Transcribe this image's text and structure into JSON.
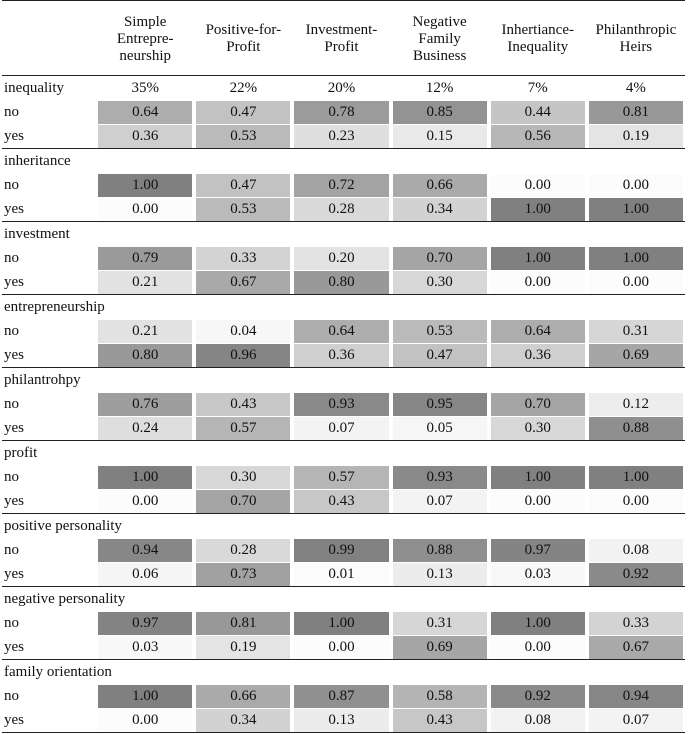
{
  "columns": [
    "Simple Entrepre-neurship",
    "Positive-for-Profit",
    "Investment-Profit",
    "Negative Family Business",
    "Inhertiance-Inequality",
    "Philanthropic Heirs"
  ],
  "column_lines": [
    [
      "Simple",
      "Entrepre-",
      "neurship"
    ],
    [
      "Positive-for-",
      "Profit"
    ],
    [
      "Investment-",
      "Profit"
    ],
    [
      "Negative",
      "Family",
      "Business"
    ],
    [
      "Inhertiance-",
      "Inequality"
    ],
    [
      "Philanthropic",
      "Heirs"
    ]
  ],
  "groups": [
    {
      "name": "inequality",
      "shares": [
        "35%",
        "22%",
        "20%",
        "12%",
        "7%",
        "4%"
      ],
      "rows": [
        {
          "label": "no",
          "values": [
            "0.64",
            "0.47",
            "0.78",
            "0.85",
            "0.44",
            "0.81"
          ]
        },
        {
          "label": "yes",
          "values": [
            "0.36",
            "0.53",
            "0.23",
            "0.15",
            "0.56",
            "0.19"
          ]
        }
      ]
    },
    {
      "name": "inheritance",
      "rows": [
        {
          "label": "no",
          "values": [
            "1.00",
            "0.47",
            "0.72",
            "0.66",
            "0.00",
            "0.00"
          ]
        },
        {
          "label": "yes",
          "values": [
            "0.00",
            "0.53",
            "0.28",
            "0.34",
            "1.00",
            "1.00"
          ]
        }
      ]
    },
    {
      "name": "investment",
      "rows": [
        {
          "label": "no",
          "values": [
            "0.79",
            "0.33",
            "0.20",
            "0.70",
            "1.00",
            "1.00"
          ]
        },
        {
          "label": "yes",
          "values": [
            "0.21",
            "0.67",
            "0.80",
            "0.30",
            "0.00",
            "0.00"
          ]
        }
      ]
    },
    {
      "name": "entrepreneurship",
      "rows": [
        {
          "label": "no",
          "values": [
            "0.21",
            "0.04",
            "0.64",
            "0.53",
            "0.64",
            "0.31"
          ]
        },
        {
          "label": "yes",
          "values": [
            "0.80",
            "0.96",
            "0.36",
            "0.47",
            "0.36",
            "0.69"
          ]
        }
      ]
    },
    {
      "name": "philantrohpy",
      "rows": [
        {
          "label": "no",
          "values": [
            "0.76",
            "0.43",
            "0.93",
            "0.95",
            "0.70",
            "0.12"
          ]
        },
        {
          "label": "yes",
          "values": [
            "0.24",
            "0.57",
            "0.07",
            "0.05",
            "0.30",
            "0.88"
          ]
        }
      ]
    },
    {
      "name": "profit",
      "rows": [
        {
          "label": "no",
          "values": [
            "1.00",
            "0.30",
            "0.57",
            "0.93",
            "1.00",
            "1.00"
          ]
        },
        {
          "label": "yes",
          "values": [
            "0.00",
            "0.70",
            "0.43",
            "0.07",
            "0.00",
            "0.00"
          ]
        }
      ]
    },
    {
      "name": "positive personality",
      "rows": [
        {
          "label": "no",
          "values": [
            "0.94",
            "0.28",
            "0.99",
            "0.88",
            "0.97",
            "0.08"
          ]
        },
        {
          "label": "yes",
          "values": [
            "0.06",
            "0.73",
            "0.01",
            "0.13",
            "0.03",
            "0.92"
          ]
        }
      ]
    },
    {
      "name": "negative personality",
      "rows": [
        {
          "label": "no",
          "values": [
            "0.97",
            "0.81",
            "1.00",
            "0.31",
            "1.00",
            "0.33"
          ]
        },
        {
          "label": "yes",
          "values": [
            "0.03",
            "0.19",
            "0.00",
            "0.69",
            "0.00",
            "0.67"
          ]
        }
      ]
    },
    {
      "name": "family orientation",
      "rows": [
        {
          "label": "no",
          "values": [
            "1.00",
            "0.66",
            "0.87",
            "0.58",
            "0.92",
            "0.94"
          ]
        },
        {
          "label": "yes",
          "values": [
            "0.00",
            "0.34",
            "0.13",
            "0.43",
            "0.08",
            "0.07"
          ]
        }
      ]
    }
  ]
}
